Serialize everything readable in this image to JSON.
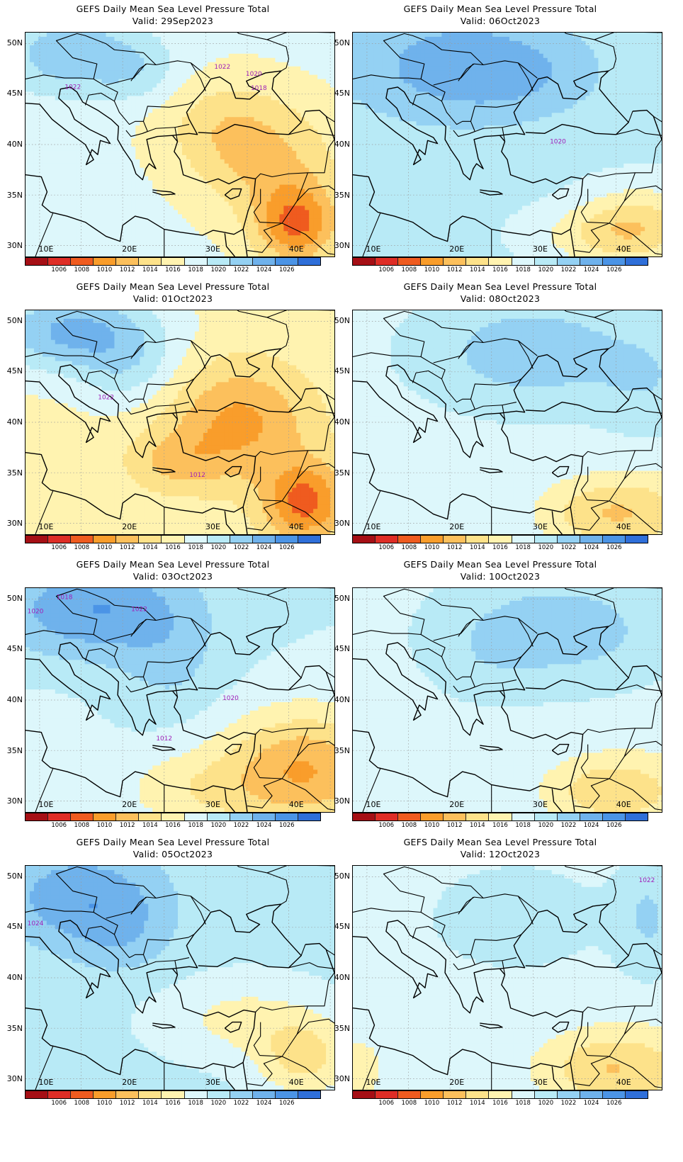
{
  "panels": [
    {
      "title": "GEFS Daily Mean Sea Level Pressure Total",
      "valid": "Valid: 29Sep2023",
      "variant": 0,
      "contour_labels": [
        "1022",
        "1020",
        "1018",
        "1022"
      ]
    },
    {
      "title": "GEFS Daily Mean Sea Level Pressure Total",
      "valid": "Valid: 06Oct2023",
      "variant": 4,
      "contour_labels": [
        "1020"
      ]
    },
    {
      "title": "GEFS Daily Mean Sea Level Pressure Total",
      "valid": "Valid: 01Oct2023",
      "variant": 1,
      "contour_labels": [
        "1022",
        "1012"
      ]
    },
    {
      "title": "GEFS Daily Mean Sea Level Pressure Total",
      "valid": "Valid: 08Oct2023",
      "variant": 5,
      "contour_labels": []
    },
    {
      "title": "GEFS Daily Mean Sea Level Pressure Total",
      "valid": "Valid: 03Oct2023",
      "variant": 2,
      "contour_labels": [
        "1018",
        "1020",
        "1022",
        "1020",
        "1012"
      ]
    },
    {
      "title": "GEFS Daily Mean Sea Level Pressure Total",
      "valid": "Valid: 10Oct2023",
      "variant": 6,
      "contour_labels": []
    },
    {
      "title": "GEFS Daily Mean Sea Level Pressure Total",
      "valid": "Valid: 05Oct2023",
      "variant": 3,
      "contour_labels": [
        "1024"
      ]
    },
    {
      "title": "GEFS Daily Mean Sea Level Pressure Total",
      "valid": "Valid: 12Oct2023",
      "variant": 7,
      "contour_labels": [
        "1022"
      ]
    }
  ],
  "lat_labels": [
    "50N",
    "45N",
    "40N",
    "35N",
    "30N"
  ],
  "lon_labels": [
    "10E",
    "20E",
    "30E",
    "40E"
  ],
  "colorbar": {
    "colors": [
      "#a50f15",
      "#de2d26",
      "#ef5b1f",
      "#f99d2b",
      "#fcc05c",
      "#fde28a",
      "#fff3b0",
      "#ddf7fb",
      "#b8eaf6",
      "#94d1f3",
      "#6fb2ec",
      "#4b94e6",
      "#2f6fd9"
    ],
    "labels": [
      "1006",
      "1008",
      "1010",
      "1012",
      "1014",
      "1016",
      "1018",
      "1020",
      "1022",
      "1024",
      "1026"
    ]
  }
}
